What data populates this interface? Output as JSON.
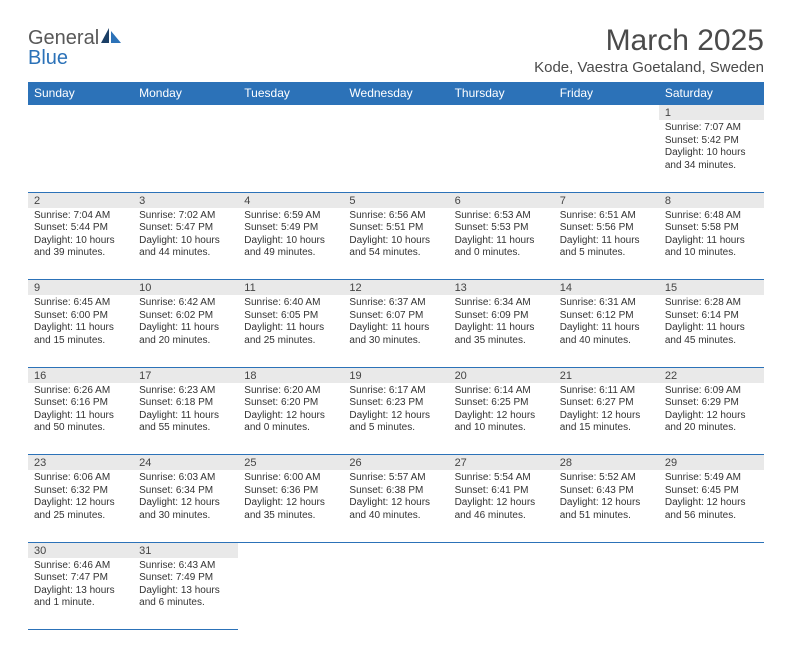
{
  "brand": {
    "part1": "General",
    "part2": "Blue"
  },
  "colors": {
    "header_bg": "#2c72b8",
    "header_text": "#ffffff",
    "daynum_bg": "#e9e9e9",
    "rule": "#2c72b8",
    "text": "#333333",
    "title": "#4a4a4a"
  },
  "title": "March 2025",
  "location": "Kode, Vaestra Goetaland, Sweden",
  "weekdays": [
    "Sunday",
    "Monday",
    "Tuesday",
    "Wednesday",
    "Thursday",
    "Friday",
    "Saturday"
  ],
  "weeks": [
    {
      "nums": [
        "",
        "",
        "",
        "",
        "",
        "",
        "1"
      ],
      "cells": [
        null,
        null,
        null,
        null,
        null,
        null,
        {
          "sunrise": "7:07 AM",
          "sunset": "5:42 PM",
          "daylight": "10 hours and 34 minutes."
        }
      ]
    },
    {
      "nums": [
        "2",
        "3",
        "4",
        "5",
        "6",
        "7",
        "8"
      ],
      "cells": [
        {
          "sunrise": "7:04 AM",
          "sunset": "5:44 PM",
          "daylight": "10 hours and 39 minutes."
        },
        {
          "sunrise": "7:02 AM",
          "sunset": "5:47 PM",
          "daylight": "10 hours and 44 minutes."
        },
        {
          "sunrise": "6:59 AM",
          "sunset": "5:49 PM",
          "daylight": "10 hours and 49 minutes."
        },
        {
          "sunrise": "6:56 AM",
          "sunset": "5:51 PM",
          "daylight": "10 hours and 54 minutes."
        },
        {
          "sunrise": "6:53 AM",
          "sunset": "5:53 PM",
          "daylight": "11 hours and 0 minutes."
        },
        {
          "sunrise": "6:51 AM",
          "sunset": "5:56 PM",
          "daylight": "11 hours and 5 minutes."
        },
        {
          "sunrise": "6:48 AM",
          "sunset": "5:58 PM",
          "daylight": "11 hours and 10 minutes."
        }
      ]
    },
    {
      "nums": [
        "9",
        "10",
        "11",
        "12",
        "13",
        "14",
        "15"
      ],
      "cells": [
        {
          "sunrise": "6:45 AM",
          "sunset": "6:00 PM",
          "daylight": "11 hours and 15 minutes."
        },
        {
          "sunrise": "6:42 AM",
          "sunset": "6:02 PM",
          "daylight": "11 hours and 20 minutes."
        },
        {
          "sunrise": "6:40 AM",
          "sunset": "6:05 PM",
          "daylight": "11 hours and 25 minutes."
        },
        {
          "sunrise": "6:37 AM",
          "sunset": "6:07 PM",
          "daylight": "11 hours and 30 minutes."
        },
        {
          "sunrise": "6:34 AM",
          "sunset": "6:09 PM",
          "daylight": "11 hours and 35 minutes."
        },
        {
          "sunrise": "6:31 AM",
          "sunset": "6:12 PM",
          "daylight": "11 hours and 40 minutes."
        },
        {
          "sunrise": "6:28 AM",
          "sunset": "6:14 PM",
          "daylight": "11 hours and 45 minutes."
        }
      ]
    },
    {
      "nums": [
        "16",
        "17",
        "18",
        "19",
        "20",
        "21",
        "22"
      ],
      "cells": [
        {
          "sunrise": "6:26 AM",
          "sunset": "6:16 PM",
          "daylight": "11 hours and 50 minutes."
        },
        {
          "sunrise": "6:23 AM",
          "sunset": "6:18 PM",
          "daylight": "11 hours and 55 minutes."
        },
        {
          "sunrise": "6:20 AM",
          "sunset": "6:20 PM",
          "daylight": "12 hours and 0 minutes."
        },
        {
          "sunrise": "6:17 AM",
          "sunset": "6:23 PM",
          "daylight": "12 hours and 5 minutes."
        },
        {
          "sunrise": "6:14 AM",
          "sunset": "6:25 PM",
          "daylight": "12 hours and 10 minutes."
        },
        {
          "sunrise": "6:11 AM",
          "sunset": "6:27 PM",
          "daylight": "12 hours and 15 minutes."
        },
        {
          "sunrise": "6:09 AM",
          "sunset": "6:29 PM",
          "daylight": "12 hours and 20 minutes."
        }
      ]
    },
    {
      "nums": [
        "23",
        "24",
        "25",
        "26",
        "27",
        "28",
        "29"
      ],
      "cells": [
        {
          "sunrise": "6:06 AM",
          "sunset": "6:32 PM",
          "daylight": "12 hours and 25 minutes."
        },
        {
          "sunrise": "6:03 AM",
          "sunset": "6:34 PM",
          "daylight": "12 hours and 30 minutes."
        },
        {
          "sunrise": "6:00 AM",
          "sunset": "6:36 PM",
          "daylight": "12 hours and 35 minutes."
        },
        {
          "sunrise": "5:57 AM",
          "sunset": "6:38 PM",
          "daylight": "12 hours and 40 minutes."
        },
        {
          "sunrise": "5:54 AM",
          "sunset": "6:41 PM",
          "daylight": "12 hours and 46 minutes."
        },
        {
          "sunrise": "5:52 AM",
          "sunset": "6:43 PM",
          "daylight": "12 hours and 51 minutes."
        },
        {
          "sunrise": "5:49 AM",
          "sunset": "6:45 PM",
          "daylight": "12 hours and 56 minutes."
        }
      ]
    },
    {
      "nums": [
        "30",
        "31",
        "",
        "",
        "",
        "",
        ""
      ],
      "cells": [
        {
          "sunrise": "6:46 AM",
          "sunset": "7:47 PM",
          "daylight": "13 hours and 1 minute."
        },
        {
          "sunrise": "6:43 AM",
          "sunset": "7:49 PM",
          "daylight": "13 hours and 6 minutes."
        },
        null,
        null,
        null,
        null,
        null
      ]
    }
  ],
  "labels": {
    "sunrise": "Sunrise: ",
    "sunset": "Sunset: ",
    "daylight": "Daylight: "
  }
}
